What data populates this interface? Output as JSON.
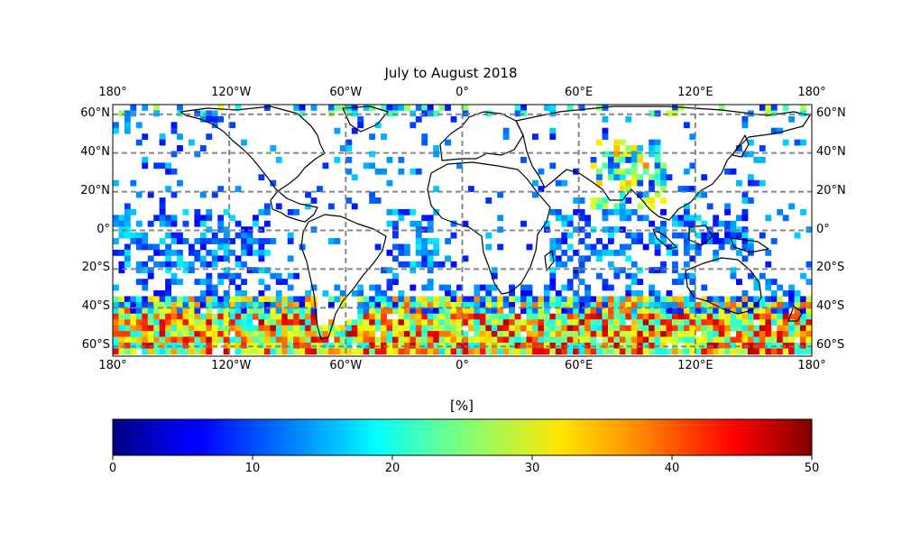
{
  "title": "July to August 2018",
  "lon_ticks": [
    "180°",
    "120°W",
    "60°W",
    "0°",
    "60°E",
    "120°E",
    "180°"
  ],
  "lat_ticks": [
    "60°N",
    "40°N",
    "20°N",
    "0°",
    "20°S",
    "40°S",
    "60°S"
  ],
  "colorbar": {
    "label": "[%]",
    "ticks": [
      "0",
      "10",
      "20",
      "30",
      "40",
      "50"
    ],
    "range": [
      0,
      50
    ],
    "colormap": "jet"
  },
  "map": {
    "projection": "plate-carree",
    "lon_range": [
      -180,
      180
    ],
    "lat_range": [
      -65,
      65
    ],
    "gridlines": "dashed-gray",
    "coastlines": true,
    "cell_size_deg": 3
  },
  "colors": {
    "gridline": "#7a7a7a",
    "coastline": "#000000",
    "low": "#0000ff",
    "high": "#800000"
  }
}
